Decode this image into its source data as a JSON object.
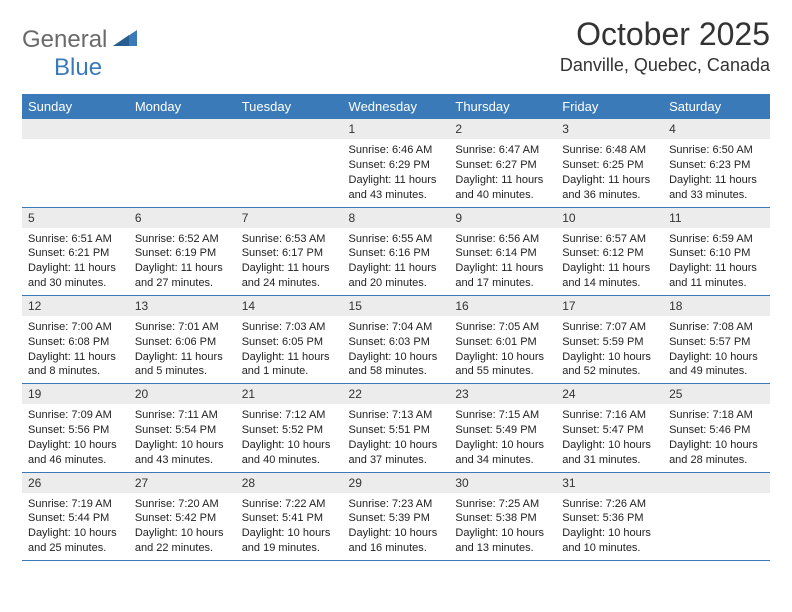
{
  "logo": {
    "part1": "General",
    "part2": "Blue",
    "primary_color": "#3a7ab8",
    "gray_color": "#6a6a6a"
  },
  "header": {
    "month_title": "October 2025",
    "location": "Danville, Quebec, Canada"
  },
  "theme": {
    "header_bg": "#3a7ab8",
    "header_text": "#ffffff",
    "daynum_bg": "#ececec",
    "border_color": "#3a7ab8",
    "body_text": "#222222"
  },
  "day_labels": [
    "Sunday",
    "Monday",
    "Tuesday",
    "Wednesday",
    "Thursday",
    "Friday",
    "Saturday"
  ],
  "weeks": [
    [
      {
        "n": "",
        "sunrise": "",
        "sunset": "",
        "daylight": ""
      },
      {
        "n": "",
        "sunrise": "",
        "sunset": "",
        "daylight": ""
      },
      {
        "n": "",
        "sunrise": "",
        "sunset": "",
        "daylight": ""
      },
      {
        "n": "1",
        "sunrise": "Sunrise: 6:46 AM",
        "sunset": "Sunset: 6:29 PM",
        "daylight": "Daylight: 11 hours and 43 minutes."
      },
      {
        "n": "2",
        "sunrise": "Sunrise: 6:47 AM",
        "sunset": "Sunset: 6:27 PM",
        "daylight": "Daylight: 11 hours and 40 minutes."
      },
      {
        "n": "3",
        "sunrise": "Sunrise: 6:48 AM",
        "sunset": "Sunset: 6:25 PM",
        "daylight": "Daylight: 11 hours and 36 minutes."
      },
      {
        "n": "4",
        "sunrise": "Sunrise: 6:50 AM",
        "sunset": "Sunset: 6:23 PM",
        "daylight": "Daylight: 11 hours and 33 minutes."
      }
    ],
    [
      {
        "n": "5",
        "sunrise": "Sunrise: 6:51 AM",
        "sunset": "Sunset: 6:21 PM",
        "daylight": "Daylight: 11 hours and 30 minutes."
      },
      {
        "n": "6",
        "sunrise": "Sunrise: 6:52 AM",
        "sunset": "Sunset: 6:19 PM",
        "daylight": "Daylight: 11 hours and 27 minutes."
      },
      {
        "n": "7",
        "sunrise": "Sunrise: 6:53 AM",
        "sunset": "Sunset: 6:17 PM",
        "daylight": "Daylight: 11 hours and 24 minutes."
      },
      {
        "n": "8",
        "sunrise": "Sunrise: 6:55 AM",
        "sunset": "Sunset: 6:16 PM",
        "daylight": "Daylight: 11 hours and 20 minutes."
      },
      {
        "n": "9",
        "sunrise": "Sunrise: 6:56 AM",
        "sunset": "Sunset: 6:14 PM",
        "daylight": "Daylight: 11 hours and 17 minutes."
      },
      {
        "n": "10",
        "sunrise": "Sunrise: 6:57 AM",
        "sunset": "Sunset: 6:12 PM",
        "daylight": "Daylight: 11 hours and 14 minutes."
      },
      {
        "n": "11",
        "sunrise": "Sunrise: 6:59 AM",
        "sunset": "Sunset: 6:10 PM",
        "daylight": "Daylight: 11 hours and 11 minutes."
      }
    ],
    [
      {
        "n": "12",
        "sunrise": "Sunrise: 7:00 AM",
        "sunset": "Sunset: 6:08 PM",
        "daylight": "Daylight: 11 hours and 8 minutes."
      },
      {
        "n": "13",
        "sunrise": "Sunrise: 7:01 AM",
        "sunset": "Sunset: 6:06 PM",
        "daylight": "Daylight: 11 hours and 5 minutes."
      },
      {
        "n": "14",
        "sunrise": "Sunrise: 7:03 AM",
        "sunset": "Sunset: 6:05 PM",
        "daylight": "Daylight: 11 hours and 1 minute."
      },
      {
        "n": "15",
        "sunrise": "Sunrise: 7:04 AM",
        "sunset": "Sunset: 6:03 PM",
        "daylight": "Daylight: 10 hours and 58 minutes."
      },
      {
        "n": "16",
        "sunrise": "Sunrise: 7:05 AM",
        "sunset": "Sunset: 6:01 PM",
        "daylight": "Daylight: 10 hours and 55 minutes."
      },
      {
        "n": "17",
        "sunrise": "Sunrise: 7:07 AM",
        "sunset": "Sunset: 5:59 PM",
        "daylight": "Daylight: 10 hours and 52 minutes."
      },
      {
        "n": "18",
        "sunrise": "Sunrise: 7:08 AM",
        "sunset": "Sunset: 5:57 PM",
        "daylight": "Daylight: 10 hours and 49 minutes."
      }
    ],
    [
      {
        "n": "19",
        "sunrise": "Sunrise: 7:09 AM",
        "sunset": "Sunset: 5:56 PM",
        "daylight": "Daylight: 10 hours and 46 minutes."
      },
      {
        "n": "20",
        "sunrise": "Sunrise: 7:11 AM",
        "sunset": "Sunset: 5:54 PM",
        "daylight": "Daylight: 10 hours and 43 minutes."
      },
      {
        "n": "21",
        "sunrise": "Sunrise: 7:12 AM",
        "sunset": "Sunset: 5:52 PM",
        "daylight": "Daylight: 10 hours and 40 minutes."
      },
      {
        "n": "22",
        "sunrise": "Sunrise: 7:13 AM",
        "sunset": "Sunset: 5:51 PM",
        "daylight": "Daylight: 10 hours and 37 minutes."
      },
      {
        "n": "23",
        "sunrise": "Sunrise: 7:15 AM",
        "sunset": "Sunset: 5:49 PM",
        "daylight": "Daylight: 10 hours and 34 minutes."
      },
      {
        "n": "24",
        "sunrise": "Sunrise: 7:16 AM",
        "sunset": "Sunset: 5:47 PM",
        "daylight": "Daylight: 10 hours and 31 minutes."
      },
      {
        "n": "25",
        "sunrise": "Sunrise: 7:18 AM",
        "sunset": "Sunset: 5:46 PM",
        "daylight": "Daylight: 10 hours and 28 minutes."
      }
    ],
    [
      {
        "n": "26",
        "sunrise": "Sunrise: 7:19 AM",
        "sunset": "Sunset: 5:44 PM",
        "daylight": "Daylight: 10 hours and 25 minutes."
      },
      {
        "n": "27",
        "sunrise": "Sunrise: 7:20 AM",
        "sunset": "Sunset: 5:42 PM",
        "daylight": "Daylight: 10 hours and 22 minutes."
      },
      {
        "n": "28",
        "sunrise": "Sunrise: 7:22 AM",
        "sunset": "Sunset: 5:41 PM",
        "daylight": "Daylight: 10 hours and 19 minutes."
      },
      {
        "n": "29",
        "sunrise": "Sunrise: 7:23 AM",
        "sunset": "Sunset: 5:39 PM",
        "daylight": "Daylight: 10 hours and 16 minutes."
      },
      {
        "n": "30",
        "sunrise": "Sunrise: 7:25 AM",
        "sunset": "Sunset: 5:38 PM",
        "daylight": "Daylight: 10 hours and 13 minutes."
      },
      {
        "n": "31",
        "sunrise": "Sunrise: 7:26 AM",
        "sunset": "Sunset: 5:36 PM",
        "daylight": "Daylight: 10 hours and 10 minutes."
      },
      {
        "n": "",
        "sunrise": "",
        "sunset": "",
        "daylight": ""
      }
    ]
  ]
}
